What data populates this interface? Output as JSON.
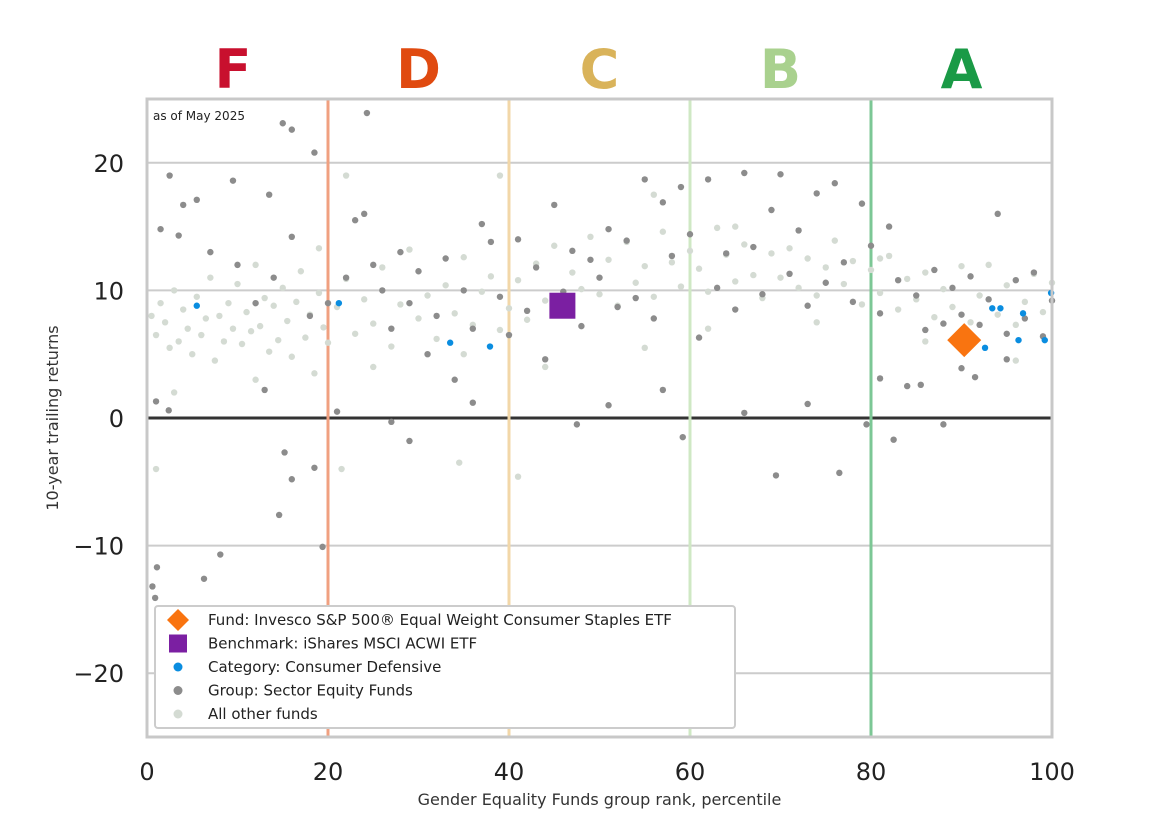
{
  "chart_data": {
    "type": "scatter",
    "note": "as of May 2025",
    "xlabel": "Gender Equality Funds group rank, percentile",
    "ylabel": "10-year trailing returns",
    "xlim": [
      0,
      100
    ],
    "ylim": [
      -25,
      25
    ],
    "x_ticks": [
      "0",
      "20",
      "40",
      "60",
      "80",
      "100"
    ],
    "y_ticks": [
      "20",
      "10",
      "0",
      "−10",
      "−20"
    ],
    "y_tick_values": [
      20,
      10,
      0,
      -10,
      -20
    ],
    "x_tick_values": [
      0,
      20,
      40,
      60,
      80,
      100
    ],
    "grid": "horizontal",
    "zero_line": 0,
    "grades": [
      {
        "label": "F",
        "x_center": 9.5,
        "color": "#c8102e",
        "boundary": 20,
        "boundary_color": "#f0a080"
      },
      {
        "label": "D",
        "x_center": 30,
        "color": "#e04a10",
        "boundary": 40,
        "boundary_color": "#f2d7a8"
      },
      {
        "label": "C",
        "x_center": 50,
        "color": "#d9b35a",
        "boundary": 60,
        "boundary_color": "#cfe8c4"
      },
      {
        "label": "B",
        "x_center": 70,
        "color": "#a9d18e",
        "boundary": 80,
        "boundary_color": "#7cc795"
      },
      {
        "label": "A",
        "x_center": 90,
        "color": "#1a9a46",
        "boundary": 100,
        "boundary_color": "#bfe3c8"
      }
    ],
    "series": [
      {
        "name": "All other funds",
        "color": "#d4dbd3",
        "marker": "circle",
        "points": [
          [
            0.5,
            8
          ],
          [
            1,
            6.5
          ],
          [
            1.5,
            9
          ],
          [
            2,
            7.5
          ],
          [
            2.5,
            5.5
          ],
          [
            3,
            10
          ],
          [
            3.5,
            6
          ],
          [
            4,
            8.5
          ],
          [
            4.5,
            7
          ],
          [
            5,
            5
          ],
          [
            5.5,
            9.5
          ],
          [
            6,
            6.5
          ],
          [
            6.5,
            7.8
          ],
          [
            7,
            11
          ],
          [
            7.5,
            4.5
          ],
          [
            8,
            8
          ],
          [
            8.5,
            6
          ],
          [
            9,
            9
          ],
          [
            9.5,
            7
          ],
          [
            10,
            10.5
          ],
          [
            10.5,
            5.8
          ],
          [
            11,
            8.3
          ],
          [
            11.5,
            6.8
          ],
          [
            12,
            12
          ],
          [
            12.5,
            7.2
          ],
          [
            13,
            9.4
          ],
          [
            13.5,
            5.2
          ],
          [
            14,
            8.8
          ],
          [
            14.5,
            6.1
          ],
          [
            15,
            10.2
          ],
          [
            15.5,
            7.6
          ],
          [
            16,
            4.8
          ],
          [
            16.5,
            9.1
          ],
          [
            17,
            11.5
          ],
          [
            17.5,
            6.3
          ],
          [
            18,
            8.1
          ],
          [
            18.5,
            3.5
          ],
          [
            19,
            9.8
          ],
          [
            19.5,
            7.1
          ],
          [
            20,
            5.9
          ],
          [
            21,
            8.7
          ],
          [
            22,
            10.9
          ],
          [
            23,
            6.6
          ],
          [
            24,
            9.3
          ],
          [
            25,
            7.4
          ],
          [
            26,
            11.8
          ],
          [
            27,
            5.6
          ],
          [
            28,
            8.9
          ],
          [
            29,
            13.2
          ],
          [
            30,
            7.8
          ],
          [
            31,
            9.6
          ],
          [
            32,
            6.2
          ],
          [
            33,
            10.4
          ],
          [
            34,
            8.2
          ],
          [
            35,
            12.6
          ],
          [
            36,
            7.3
          ],
          [
            37,
            9.9
          ],
          [
            38,
            11.1
          ],
          [
            39,
            6.9
          ],
          [
            40,
            8.6
          ],
          [
            41,
            10.8
          ],
          [
            42,
            7.7
          ],
          [
            43,
            12.1
          ],
          [
            44,
            9.2
          ],
          [
            45,
            13.5
          ],
          [
            46,
            8.4
          ],
          [
            47,
            11.4
          ],
          [
            48,
            10.1
          ],
          [
            49,
            14.2
          ],
          [
            50,
            9.7
          ],
          [
            51,
            12.4
          ],
          [
            52,
            8.8
          ],
          [
            53,
            13.8
          ],
          [
            54,
            10.6
          ],
          [
            55,
            11.9
          ],
          [
            56,
            9.5
          ],
          [
            57,
            14.6
          ],
          [
            58,
            12.2
          ],
          [
            59,
            10.3
          ],
          [
            60,
            13.1
          ],
          [
            61,
            11.7
          ],
          [
            62,
            9.9
          ],
          [
            63,
            14.9
          ],
          [
            64,
            12.8
          ],
          [
            65,
            10.7
          ],
          [
            66,
            13.6
          ],
          [
            67,
            11.2
          ],
          [
            68,
            9.4
          ],
          [
            69,
            12.9
          ],
          [
            70,
            11.0
          ],
          [
            71,
            13.3
          ],
          [
            72,
            10.2
          ],
          [
            73,
            12.5
          ],
          [
            74,
            9.6
          ],
          [
            75,
            11.8
          ],
          [
            76,
            13.9
          ],
          [
            77,
            10.5
          ],
          [
            78,
            12.3
          ],
          [
            79,
            8.9
          ],
          [
            80,
            11.6
          ],
          [
            81,
            9.8
          ],
          [
            82,
            12.7
          ],
          [
            83,
            8.5
          ],
          [
            84,
            10.9
          ],
          [
            85,
            9.3
          ],
          [
            86,
            11.4
          ],
          [
            87,
            7.9
          ],
          [
            88,
            10.1
          ],
          [
            89,
            8.7
          ],
          [
            90,
            11.9
          ],
          [
            91,
            7.5
          ],
          [
            92,
            9.6
          ],
          [
            93,
            12.0
          ],
          [
            94,
            8.1
          ],
          [
            95,
            10.4
          ],
          [
            96,
            7.3
          ],
          [
            97,
            9.1
          ],
          [
            98,
            11.3
          ],
          [
            99,
            8.3
          ],
          [
            100,
            10.6
          ],
          [
            3,
            2
          ],
          [
            12,
            3
          ],
          [
            25,
            4
          ],
          [
            35,
            5
          ],
          [
            55,
            5.5
          ],
          [
            62,
            7
          ],
          [
            74,
            7.5
          ],
          [
            86,
            6
          ],
          [
            96,
            4.5
          ],
          [
            44,
            4
          ],
          [
            1,
            -4
          ],
          [
            21.5,
            -4
          ],
          [
            34.5,
            -3.5
          ],
          [
            41,
            -4.6
          ],
          [
            22,
            19
          ],
          [
            39,
            19
          ],
          [
            56,
            17.5
          ],
          [
            19,
            13.3
          ],
          [
            65,
            15
          ],
          [
            81,
            12.5
          ]
        ]
      },
      {
        "name": "Group: Sector Equity Funds",
        "color": "#8c8c8c",
        "marker": "circle",
        "points": [
          [
            0.6,
            -13.2
          ],
          [
            0.9,
            -14.1
          ],
          [
            1.1,
            -11.7
          ],
          [
            6.3,
            -12.6
          ],
          [
            8.1,
            -10.7
          ],
          [
            14.6,
            -7.6
          ],
          [
            19.4,
            -10.1
          ],
          [
            15.2,
            -2.7
          ],
          [
            16,
            -4.8
          ],
          [
            18.5,
            -3.9
          ],
          [
            15,
            23.1
          ],
          [
            16,
            22.6
          ],
          [
            18.5,
            20.8
          ],
          [
            24.3,
            23.9
          ],
          [
            2.5,
            19
          ],
          [
            9.5,
            18.6
          ],
          [
            13.5,
            17.5
          ],
          [
            1.5,
            14.8
          ],
          [
            3.5,
            14.3
          ],
          [
            4,
            16.7
          ],
          [
            5.5,
            17.1
          ],
          [
            7,
            13
          ],
          [
            10,
            12
          ],
          [
            12,
            9
          ],
          [
            14,
            11
          ],
          [
            16,
            14.2
          ],
          [
            18,
            8
          ],
          [
            20,
            9
          ],
          [
            22,
            11
          ],
          [
            23,
            15.5
          ],
          [
            24,
            16
          ],
          [
            25,
            12
          ],
          [
            26,
            10
          ],
          [
            27,
            7
          ],
          [
            28,
            13
          ],
          [
            29,
            9
          ],
          [
            30,
            11.5
          ],
          [
            31,
            5
          ],
          [
            32,
            8
          ],
          [
            33,
            12.5
          ],
          [
            34,
            3
          ],
          [
            35,
            10
          ],
          [
            36,
            7
          ],
          [
            37,
            15.2
          ],
          [
            38,
            13.8
          ],
          [
            39,
            9.5
          ],
          [
            40,
            6.5
          ],
          [
            41,
            14
          ],
          [
            42,
            8.4
          ],
          [
            43,
            11.8
          ],
          [
            44,
            4.6
          ],
          [
            45,
            16.7
          ],
          [
            46,
            9.9
          ],
          [
            47,
            13.1
          ],
          [
            48,
            7.2
          ],
          [
            49,
            12.4
          ],
          [
            50,
            11
          ],
          [
            51,
            14.8
          ],
          [
            52,
            8.7
          ],
          [
            53,
            13.9
          ],
          [
            54,
            9.4
          ],
          [
            55,
            18.7
          ],
          [
            56,
            7.8
          ],
          [
            57,
            16.9
          ],
          [
            58,
            12.7
          ],
          [
            59,
            18.1
          ],
          [
            60,
            14.4
          ],
          [
            61,
            6.3
          ],
          [
            62,
            18.7
          ],
          [
            63,
            10.2
          ],
          [
            64,
            12.9
          ],
          [
            65,
            8.5
          ],
          [
            66,
            19.2
          ],
          [
            67,
            13.4
          ],
          [
            68,
            9.7
          ],
          [
            69,
            16.3
          ],
          [
            70,
            19.1
          ],
          [
            71,
            11.3
          ],
          [
            72,
            14.7
          ],
          [
            73,
            8.8
          ],
          [
            74,
            17.6
          ],
          [
            75,
            10.6
          ],
          [
            76,
            18.4
          ],
          [
            77,
            12.2
          ],
          [
            78,
            9.1
          ],
          [
            79,
            16.8
          ],
          [
            80,
            13.5
          ],
          [
            81,
            8.2
          ],
          [
            82,
            15
          ],
          [
            83,
            10.8
          ],
          [
            84,
            2.5
          ],
          [
            85,
            9.6
          ],
          [
            86,
            6.9
          ],
          [
            87,
            11.6
          ],
          [
            88,
            7.4
          ],
          [
            89,
            10.2
          ],
          [
            90,
            8.1
          ],
          [
            91,
            11.1
          ],
          [
            92,
            7.3
          ],
          [
            93,
            9.3
          ],
          [
            94,
            16
          ],
          [
            95,
            6.6
          ],
          [
            96,
            10.8
          ],
          [
            97,
            7.8
          ],
          [
            98,
            11.4
          ],
          [
            99,
            6.4
          ],
          [
            100,
            9.2
          ],
          [
            69.5,
            -4.5
          ],
          [
            76.5,
            -4.3
          ],
          [
            82.5,
            -1.7
          ],
          [
            79.5,
            -0.5
          ],
          [
            88,
            -0.5
          ],
          [
            29,
            -1.8
          ],
          [
            27,
            -0.3
          ],
          [
            47.5,
            -0.5
          ],
          [
            59.2,
            -1.5
          ],
          [
            1,
            1.3
          ],
          [
            2.4,
            0.6
          ],
          [
            13,
            2.2
          ],
          [
            21,
            0.5
          ],
          [
            36,
            1.2
          ],
          [
            51,
            1
          ],
          [
            57,
            2.2
          ],
          [
            66,
            0.4
          ],
          [
            73,
            1.1
          ],
          [
            81,
            3.1
          ],
          [
            85.5,
            2.6
          ],
          [
            90,
            3.9
          ],
          [
            95,
            4.6
          ],
          [
            91.5,
            3.2
          ]
        ]
      },
      {
        "name": "Category: Consumer Defensive",
        "color": "#0a8de0",
        "marker": "circle",
        "points": [
          [
            5.5,
            8.8
          ],
          [
            21.2,
            9
          ],
          [
            33.5,
            5.9
          ],
          [
            37.9,
            5.6
          ],
          [
            92.6,
            5.5
          ],
          [
            93.4,
            8.6
          ],
          [
            94.3,
            8.6
          ],
          [
            96.3,
            6.1
          ],
          [
            96.8,
            8.2
          ],
          [
            99.2,
            6.1
          ],
          [
            99.9,
            9.8
          ]
        ]
      },
      {
        "name": "Benchmark: iShares MSCI ACWI ETF",
        "color": "#7b1fa2",
        "marker": "square",
        "points": [
          [
            45.9,
            8.8
          ]
        ]
      },
      {
        "name": "Fund: Invesco S&P 500® Equal Weight Consumer Staples ETF",
        "color": "#f97410",
        "marker": "diamond",
        "points": [
          [
            90.3,
            6.1
          ]
        ]
      }
    ],
    "legend": {
      "placement": "lower-left",
      "entries": [
        {
          "label": "Fund: Invesco S&P 500® Equal Weight Consumer Staples ETF",
          "color": "#f97410",
          "marker": "diamond"
        },
        {
          "label": "Benchmark: iShares MSCI ACWI ETF",
          "color": "#7b1fa2",
          "marker": "square"
        },
        {
          "label": "Category: Consumer Defensive",
          "color": "#0a8de0",
          "marker": "circle"
        },
        {
          "label": "Group: Sector Equity Funds",
          "color": "#8c8c8c",
          "marker": "circle"
        },
        {
          "label": "All other funds",
          "color": "#d4dbd3",
          "marker": "circle"
        }
      ]
    }
  }
}
